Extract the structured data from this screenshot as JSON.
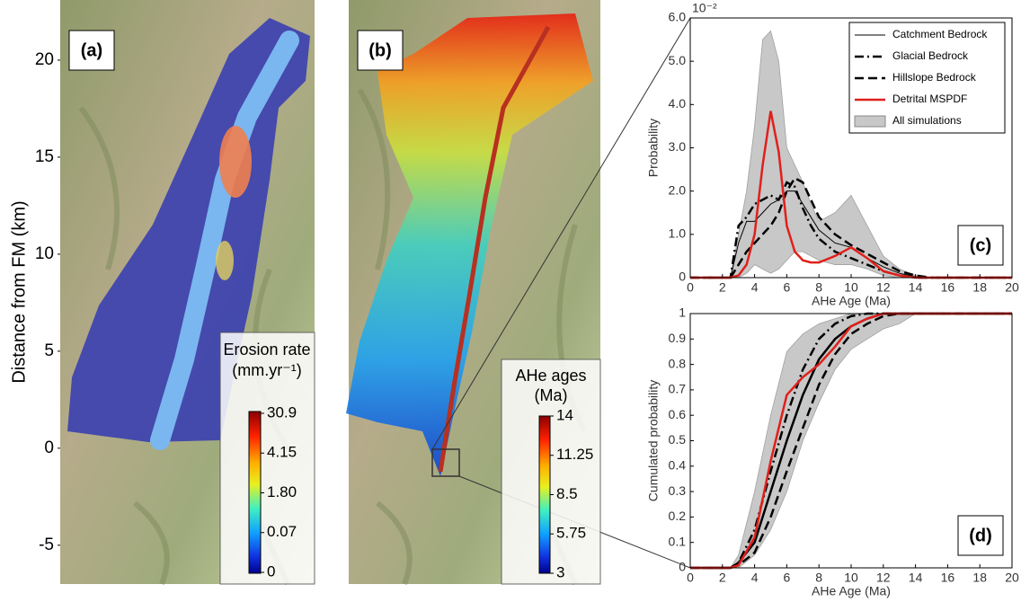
{
  "maps": [
    {
      "label": "(a)",
      "y_axis_label": "Distance from FM (km)",
      "ylim": [
        -7,
        23.1
      ],
      "yticks": [
        -5,
        0,
        5,
        10,
        15,
        20
      ],
      "colorbar": {
        "title": "Erosion rate",
        "unit": "(mm.yr⁻¹)",
        "ticks": [
          30.9,
          4.15,
          {
            "value": 1.8,
            "label": "1.80"
          },
          0.07,
          0
        ]
      }
    },
    {
      "label": "(b)",
      "colorbar": {
        "title": "AHe ages",
        "unit": "(Ma)",
        "ticks": [
          14,
          11.25,
          8.5,
          5.75,
          3
        ]
      }
    }
  ],
  "chart_data": [
    {
      "type": "line",
      "label": "(c)",
      "x_label": "AHe Age (Ma)",
      "y_label": "Probability",
      "y_multiplier": "10⁻²",
      "xlim": [
        0,
        20
      ],
      "xticks": [
        0,
        2,
        4,
        6,
        8,
        10,
        12,
        14,
        16,
        18,
        20
      ],
      "ylim": [
        0,
        6
      ],
      "yticks": [
        0,
        {
          "value": 1,
          "label": "1.0"
        },
        {
          "value": 2,
          "label": "2.0"
        },
        {
          "value": 3,
          "label": "3.0"
        },
        {
          "value": 4,
          "label": "4.0"
        },
        {
          "value": 5,
          "label": "5.0"
        },
        {
          "value": 6,
          "label": "6.0"
        }
      ],
      "legend": "upper right",
      "x": [
        0,
        2.5,
        3,
        3.5,
        4,
        4.5,
        5,
        5.5,
        6,
        6.5,
        7,
        7.5,
        8,
        9,
        10,
        11,
        12,
        13,
        14,
        15,
        16,
        20
      ],
      "series": [
        {
          "name": "Catchment Bedrock",
          "color": "#000000",
          "dash": "solid",
          "width": 1,
          "values": [
            0,
            0,
            0.8,
            1.3,
            1.3,
            1.5,
            1.7,
            1.8,
            2.0,
            2.0,
            1.7,
            1.4,
            1.1,
            0.8,
            0.7,
            0.45,
            0.25,
            0.1,
            0.02,
            0,
            0,
            0
          ]
        },
        {
          "name": "Glacial Bedrock",
          "color": "#000000",
          "dash": "dashdot",
          "width": 2.5,
          "values": [
            0,
            0,
            1.2,
            1.4,
            1.7,
            1.8,
            1.9,
            1.8,
            2.2,
            2.1,
            1.6,
            1.2,
            0.9,
            0.6,
            0.45,
            0.3,
            0.15,
            0.05,
            0,
            0,
            0,
            0
          ]
        },
        {
          "name": "Hillslope Bedrock",
          "color": "#000000",
          "dash": "dash",
          "width": 2.5,
          "values": [
            0,
            0,
            0.3,
            0.6,
            0.8,
            1.0,
            1.2,
            1.5,
            2.0,
            2.3,
            2.2,
            1.8,
            1.4,
            1.0,
            0.75,
            0.55,
            0.35,
            0.15,
            0.05,
            0,
            0,
            0
          ]
        },
        {
          "name": "Detrital MSPDF",
          "color": "#e0201b",
          "dash": "solid",
          "width": 2.5,
          "values": [
            0,
            0,
            0.05,
            0.3,
            1.0,
            2.6,
            3.85,
            2.9,
            1.2,
            0.6,
            0.4,
            0.35,
            0.35,
            0.5,
            0.7,
            0.45,
            0.15,
            0.05,
            0,
            0,
            0,
            0
          ]
        },
        {
          "name": "All simulations",
          "color": "#c8c8c8",
          "dash": "band",
          "upper": [
            0,
            0,
            1.0,
            2.0,
            3.5,
            5.5,
            5.7,
            5.0,
            3.0,
            2.6,
            2.2,
            1.7,
            1.3,
            1.5,
            1.9,
            1.2,
            0.5,
            0.2,
            0.05,
            0,
            0,
            0
          ],
          "lower": [
            0,
            0,
            0,
            0.1,
            0.3,
            0.2,
            0.1,
            0.2,
            0.4,
            0.6,
            0.6,
            0.5,
            0.4,
            0.3,
            0.3,
            0.2,
            0.05,
            0,
            0,
            0,
            0,
            0
          ]
        }
      ]
    },
    {
      "type": "line",
      "label": "(d)",
      "x_label": "AHe Age (Ma)",
      "y_label": "Cumulated probability",
      "xlim": [
        0,
        20
      ],
      "xticks": [
        0,
        2,
        4,
        6,
        8,
        10,
        12,
        14,
        16,
        18,
        20
      ],
      "ylim": [
        0,
        1
      ],
      "yticks": [
        0,
        0.1,
        0.2,
        0.3,
        0.4,
        0.5,
        0.6,
        0.7,
        0.8,
        0.9,
        1
      ],
      "x": [
        0,
        2.5,
        3,
        4,
        5,
        6,
        7,
        8,
        9,
        10,
        11,
        12,
        13,
        14,
        16,
        20
      ],
      "series": [
        {
          "name": "Catchment Bedrock",
          "color": "#000000",
          "dash": "solid",
          "width": 2.5,
          "values": [
            0,
            0,
            0.02,
            0.1,
            0.3,
            0.5,
            0.68,
            0.82,
            0.9,
            0.95,
            0.98,
            1,
            1,
            1,
            1,
            1
          ]
        },
        {
          "name": "Glacial Bedrock",
          "color": "#000000",
          "dash": "dashdot",
          "width": 2.5,
          "values": [
            0,
            0,
            0.02,
            0.15,
            0.38,
            0.6,
            0.78,
            0.9,
            0.96,
            0.99,
            1,
            1,
            1,
            1,
            1,
            1
          ]
        },
        {
          "name": "Hillslope Bedrock",
          "color": "#000000",
          "dash": "dash",
          "width": 2.5,
          "values": [
            0,
            0,
            0.01,
            0.06,
            0.2,
            0.38,
            0.55,
            0.72,
            0.84,
            0.92,
            0.96,
            0.99,
            1,
            1,
            1,
            1
          ]
        },
        {
          "name": "Detrital MSPDF",
          "color": "#e0201b",
          "dash": "solid",
          "width": 2.5,
          "values": [
            0,
            0,
            0.01,
            0.12,
            0.42,
            0.68,
            0.75,
            0.8,
            0.87,
            0.95,
            0.98,
            1,
            1,
            1,
            1,
            1
          ]
        },
        {
          "name": "All simulations",
          "color": "#c8c8c8",
          "dash": "band",
          "upper": [
            0,
            0,
            0.05,
            0.3,
            0.6,
            0.85,
            0.92,
            0.96,
            0.98,
            1,
            1,
            1,
            1,
            1,
            1,
            1
          ],
          "lower": [
            0,
            0,
            0,
            0.05,
            0.15,
            0.3,
            0.5,
            0.65,
            0.78,
            0.86,
            0.9,
            0.94,
            0.96,
            1,
            1,
            1
          ]
        }
      ]
    }
  ]
}
